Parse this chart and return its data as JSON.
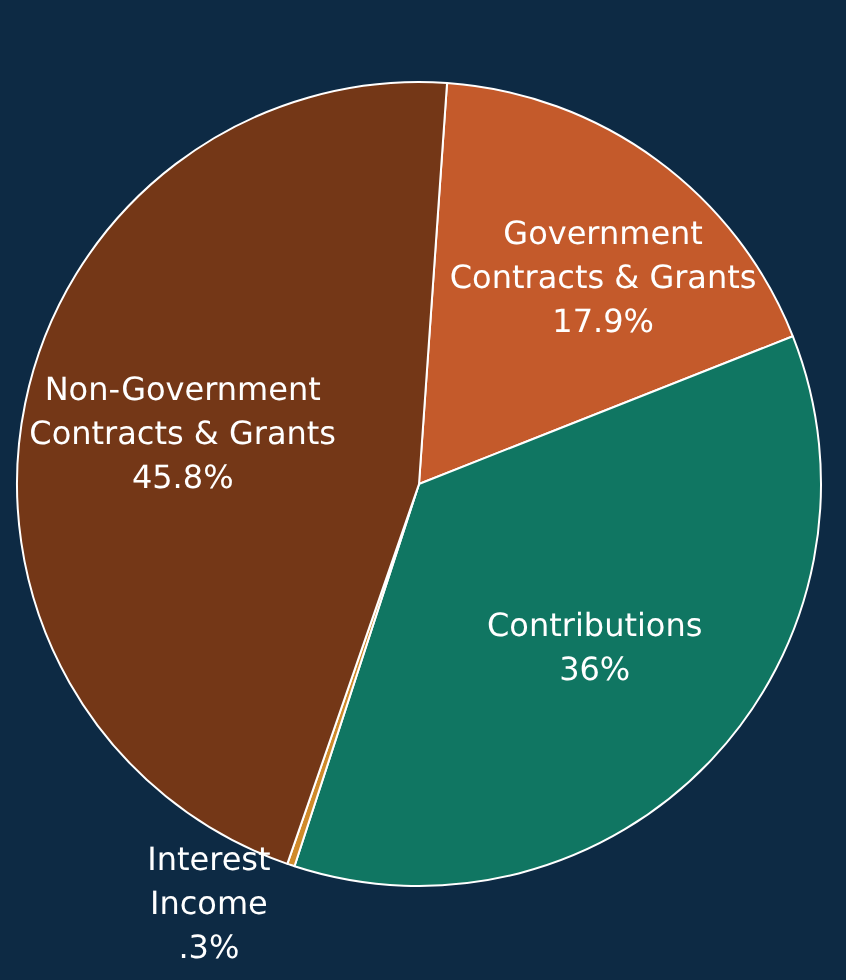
{
  "chart_data": {
    "type": "pie",
    "categories": [
      "Government Contracts & Grants",
      "Contributions",
      "Interest Income",
      "Non-Government Contracts & Grants"
    ],
    "values": [
      17.9,
      36,
      0.3,
      45.8
    ],
    "value_labels": [
      "17.9%",
      "36%",
      ".3%",
      "45.8%"
    ],
    "colors": [
      "#c45a2b",
      "#107662",
      "#d08a2a",
      "#743717"
    ],
    "legend": false
  }
}
